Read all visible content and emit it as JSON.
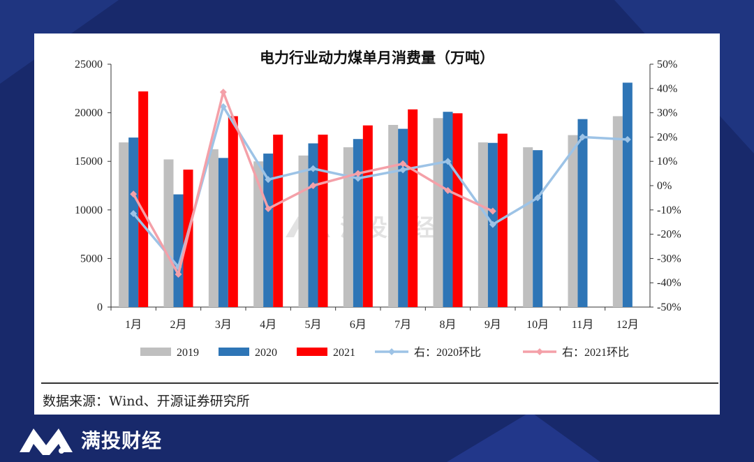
{
  "chart_data": {
    "type": "bar",
    "title": "电力行业动力煤单月消费量（万吨）",
    "categories": [
      "1月",
      "2月",
      "3月",
      "4月",
      "5月",
      "6月",
      "7月",
      "8月",
      "9月",
      "10月",
      "11月",
      "12月"
    ],
    "series": [
      {
        "name": "2019",
        "axis": "left",
        "type": "bar",
        "color": "#bfbfbf",
        "values": [
          16950,
          15200,
          16250,
          15000,
          15600,
          16450,
          18750,
          19450,
          16950,
          16450,
          17700,
          19650
        ]
      },
      {
        "name": "2020",
        "axis": "left",
        "type": "bar",
        "color": "#2e75b6",
        "values": [
          17450,
          11600,
          15350,
          15800,
          16850,
          17300,
          18350,
          20100,
          16900,
          16150,
          19350,
          23100
        ]
      },
      {
        "name": "2021",
        "axis": "left",
        "type": "bar",
        "color": "#ff0000",
        "values": [
          22200,
          14150,
          19650,
          17750,
          17750,
          18700,
          20350,
          19950,
          17850,
          null,
          null,
          null
        ]
      },
      {
        "name": "右：2020环比",
        "axis": "right",
        "type": "line",
        "color": "#9dc3e6",
        "values": [
          -11.5,
          -33.5,
          32.5,
          2.5,
          7,
          3,
          6.5,
          10,
          -16,
          -5,
          20,
          19
        ]
      },
      {
        "name": "右：2021环比",
        "axis": "right",
        "type": "line",
        "color": "#f4a0a8",
        "values": [
          -3.5,
          -36.5,
          38.5,
          -9.5,
          0,
          5,
          9,
          -2,
          -10.5,
          null,
          null,
          null
        ]
      }
    ],
    "y_left": {
      "min": 0,
      "max": 25000,
      "ticks": [
        "0",
        "5000",
        "10000",
        "15000",
        "20000",
        "25000"
      ]
    },
    "y_right": {
      "min": -50,
      "max": 50,
      "ticks": [
        "-50%",
        "-40%",
        "-30%",
        "-20%",
        "-10%",
        "0%",
        "10%",
        "20%",
        "30%",
        "40%",
        "50%"
      ]
    },
    "legend_position": "bottom",
    "grid": false
  },
  "source_text": "数据来源：Wind、开源证券研究所",
  "watermark_text": "满投财经",
  "brand": {
    "name": "满投财经"
  }
}
